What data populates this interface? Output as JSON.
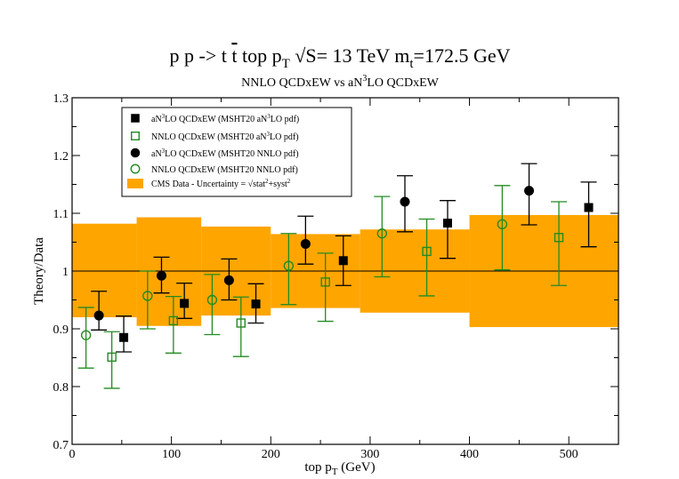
{
  "chart_data": {
    "type": "scatter",
    "title_parts": {
      "a": "p p -> t ",
      "tbar": "t",
      "b": "   top p",
      "b_sub": "T",
      "c": "  √S= 13 TeV   m",
      "c_sub": "t",
      "d": "=172.5 GeV"
    },
    "subtitle_parts": {
      "a": "NNLO QCDxEW  vs  aN",
      "sup": "3",
      "b": "LO QCDxEW"
    },
    "xlabel_parts": {
      "main": "top p",
      "sub": "T",
      "rest": " (GeV)"
    },
    "ylabel": "Theory/Data",
    "xlim": [
      0,
      550
    ],
    "ylim": [
      0.7,
      1.3
    ],
    "x_ticks": [
      0,
      100,
      200,
      300,
      400,
      500
    ],
    "y_ticks": [
      0.7,
      0.8,
      0.9,
      1.0,
      1.1,
      1.2,
      1.3
    ],
    "y_tick_labels": [
      "0.7",
      "0.8",
      "0.9",
      "1",
      "1.1",
      "1.2",
      "1.3"
    ],
    "reference_line": 1.0,
    "band": {
      "name": "CMS Data  - Uncertainty = √stat²+syst²",
      "color": "#ffa500",
      "bins": [
        {
          "x0": 0,
          "x1": 65,
          "lo": 0.92,
          "hi": 1.082
        },
        {
          "x0": 65,
          "x1": 130,
          "lo": 0.905,
          "hi": 1.093
        },
        {
          "x0": 130,
          "x1": 200,
          "lo": 0.923,
          "hi": 1.077
        },
        {
          "x0": 200,
          "x1": 290,
          "lo": 0.936,
          "hi": 1.064
        },
        {
          "x0": 290,
          "x1": 400,
          "lo": 0.928,
          "hi": 1.072
        },
        {
          "x0": 400,
          "x1": 550,
          "lo": 0.903,
          "hi": 1.097
        }
      ]
    },
    "series": [
      {
        "name": "aN³LO QCDxEW (MSHT20 aN³LO pdf)",
        "legend": {
          "a": "aN",
          "sup": "3",
          "b": "LO QCDxEW (MSHT20 aN",
          "sup2": "3",
          "c": "LO pdf)"
        },
        "marker": "square",
        "filled": true,
        "color": "#000000",
        "points": [
          {
            "x": 52,
            "y": 0.885,
            "lo": 0.86,
            "hi": 0.922
          },
          {
            "x": 113,
            "y": 0.944,
            "lo": 0.918,
            "hi": 0.979
          },
          {
            "x": 185,
            "y": 0.943,
            "lo": 0.91,
            "hi": 0.978
          },
          {
            "x": 273,
            "y": 1.018,
            "lo": 0.975,
            "hi": 1.061
          },
          {
            "x": 378,
            "y": 1.083,
            "lo": 1.022,
            "hi": 1.122
          },
          {
            "x": 520,
            "y": 1.11,
            "lo": 1.042,
            "hi": 1.154
          }
        ]
      },
      {
        "name": "NNLO QCDxEW (MSHT20 aN³LO pdf)",
        "legend": {
          "a": "NNLO QCDxEW (MSHT20 aN",
          "sup": "3",
          "b": "LO pdf)"
        },
        "marker": "square",
        "filled": false,
        "color": "#228b22",
        "points": [
          {
            "x": 40,
            "y": 0.851,
            "lo": 0.797,
            "hi": 0.895
          },
          {
            "x": 102,
            "y": 0.914,
            "lo": 0.858,
            "hi": 0.956
          },
          {
            "x": 170,
            "y": 0.91,
            "lo": 0.852,
            "hi": 0.955
          },
          {
            "x": 255,
            "y": 0.981,
            "lo": 0.913,
            "hi": 1.031
          },
          {
            "x": 357,
            "y": 1.034,
            "lo": 0.957,
            "hi": 1.09
          },
          {
            "x": 490,
            "y": 1.058,
            "lo": 0.975,
            "hi": 1.12
          }
        ]
      },
      {
        "name": "aN³LO QCDxEW (MSHT20 NNLO pdf)",
        "legend": {
          "a": "aN",
          "sup": "3",
          "b": "LO QCDxEW (MSHT20 NNLO pdf)"
        },
        "marker": "circle",
        "filled": true,
        "color": "#000000",
        "points": [
          {
            "x": 27,
            "y": 0.923,
            "lo": 0.898,
            "hi": 0.965
          },
          {
            "x": 90,
            "y": 0.992,
            "lo": 0.962,
            "hi": 1.024
          },
          {
            "x": 158,
            "y": 0.984,
            "lo": 0.95,
            "hi": 1.021
          },
          {
            "x": 235,
            "y": 1.047,
            "lo": 1.012,
            "hi": 1.095
          },
          {
            "x": 335,
            "y": 1.12,
            "lo": 1.068,
            "hi": 1.165
          },
          {
            "x": 460,
            "y": 1.139,
            "lo": 1.08,
            "hi": 1.186
          }
        ]
      },
      {
        "name": "NNLO QCDxEW (MSHT20 NNLO pdf)",
        "legend": {
          "a": "NNLO QCDxEW (MSHT20 NNLO pdf)"
        },
        "marker": "circle",
        "filled": false,
        "color": "#228b22",
        "points": [
          {
            "x": 14,
            "y": 0.889,
            "lo": 0.832,
            "hi": 0.937
          },
          {
            "x": 76,
            "y": 0.957,
            "lo": 0.9,
            "hi": 1.0
          },
          {
            "x": 141,
            "y": 0.95,
            "lo": 0.89,
            "hi": 0.994
          },
          {
            "x": 218,
            "y": 1.009,
            "lo": 0.942,
            "hi": 1.065
          },
          {
            "x": 312,
            "y": 1.065,
            "lo": 0.99,
            "hi": 1.129
          },
          {
            "x": 433,
            "y": 1.081,
            "lo": 1.002,
            "hi": 1.148
          }
        ]
      }
    ],
    "band_legend": {
      "a": "CMS Data  - Uncertainty = √stat",
      "sup": "2",
      "b": "+syst",
      "sup2": "2"
    }
  }
}
